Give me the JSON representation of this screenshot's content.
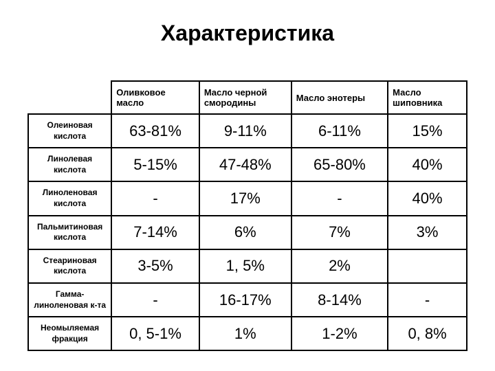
{
  "title": "Характеристика",
  "table": {
    "columns": [
      "Оливковое масло",
      "Масло черной смородины",
      "Масло энотеры",
      "Масло шиповника"
    ],
    "rows": [
      {
        "label": "Олеиновая кислота",
        "cells": [
          "63-81%",
          "9-11%",
          "6-11%",
          "15%"
        ]
      },
      {
        "label": "Линолевая кислота",
        "cells": [
          "5-15%",
          "47-48%",
          "65-80%",
          "40%"
        ]
      },
      {
        "label": "Линоленовая кислота",
        "cells": [
          "-",
          "17%",
          "-",
          "40%"
        ]
      },
      {
        "label": "Пальмитиновая кислота",
        "cells": [
          "7-14%",
          "6%",
          "7%",
          "3%"
        ]
      },
      {
        "label": "Стеариновая кислота",
        "cells": [
          "3-5%",
          "1, 5%",
          "2%",
          ""
        ]
      },
      {
        "label": "Гамма-линоленовая к-та",
        "cells": [
          "-",
          "16-17%",
          "8-14%",
          "-"
        ]
      },
      {
        "label": "Неомыляемая фракция",
        "cells": [
          "0, 5-1%",
          "1%",
          "1-2%",
          "0, 8%"
        ]
      }
    ]
  }
}
